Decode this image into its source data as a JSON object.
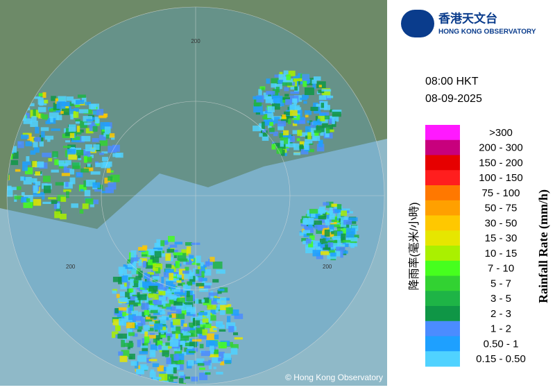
{
  "logo": {
    "chinese": "香港天文台",
    "english": "HONG KONG OBSERVATORY"
  },
  "time": "08:00 HKT",
  "date": "08-09-2025",
  "legend": {
    "title_chinese": "降雨率(毫米/小時)",
    "title_english": "Rainfall Rate (mm/h)",
    "items": [
      {
        "label": ">300",
        "color": "#ff19ff"
      },
      {
        "label": "200 - 300",
        "color": "#c8007d"
      },
      {
        "label": "150 - 200",
        "color": "#e60000"
      },
      {
        "label": "100 - 150",
        "color": "#ff1e1e"
      },
      {
        "label": "75 - 100",
        "color": "#ff7800"
      },
      {
        "label": "50 - 75",
        "color": "#ffa000"
      },
      {
        "label": "30 - 50",
        "color": "#ffc800"
      },
      {
        "label": "15 - 30",
        "color": "#e6e600"
      },
      {
        "label": "10 - 15",
        "color": "#aaf000"
      },
      {
        "label": "7 - 10",
        "color": "#46ff1e"
      },
      {
        "label": "5 - 7",
        "color": "#32d232"
      },
      {
        "label": "3 - 5",
        "color": "#1eb446"
      },
      {
        "label": "2 - 3",
        "color": "#0f9646"
      },
      {
        "label": "1 - 2",
        "color": "#4b8cff"
      },
      {
        "label": "0.50 - 1",
        "color": "#1ea0ff"
      },
      {
        "label": "0.15 - 0.50",
        "color": "#50d2ff"
      }
    ]
  },
  "map": {
    "ring_labels": [
      "200",
      "200",
      "200"
    ],
    "copyright": "© Hong Kong Observatory"
  }
}
